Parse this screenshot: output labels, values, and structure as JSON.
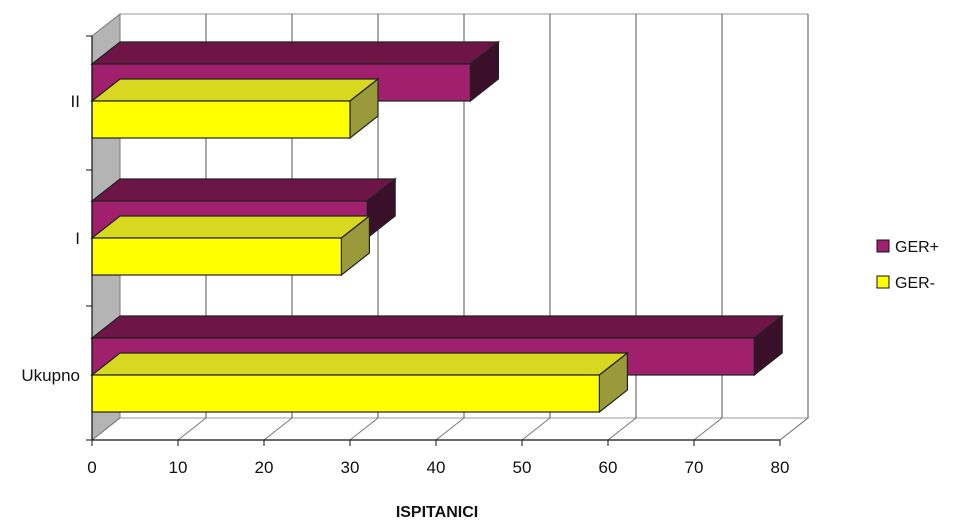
{
  "chart_data": {
    "type": "bar",
    "orientation": "horizontal",
    "style": "3d",
    "categories": [
      "Ukupno",
      "I",
      "II"
    ],
    "series": [
      {
        "name": "GER+",
        "values": [
          77,
          32,
          44
        ],
        "color": "#a0206e",
        "top_color": "#6e1548",
        "side_color": "#3a0f2a"
      },
      {
        "name": "GER-",
        "values": [
          59,
          29,
          30
        ],
        "color": "#ffff00",
        "top_color": "#d8d820",
        "side_color": "#9a9a3a"
      }
    ],
    "x_ticks": [
      "0",
      "10",
      "20",
      "30",
      "40",
      "50",
      "60",
      "70",
      "80"
    ],
    "xlim": [
      0,
      80
    ],
    "xlabel": "ISPITANICI",
    "ylabel": "",
    "title": "",
    "grid": true,
    "legend_position": "right"
  }
}
